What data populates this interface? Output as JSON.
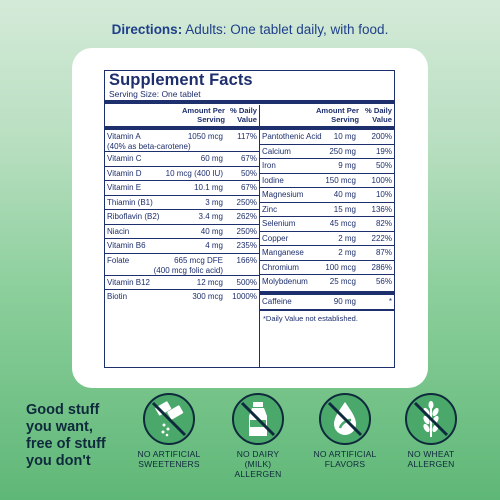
{
  "directions": {
    "label": "Directions:",
    "text": "Adults: One tablet daily, with food."
  },
  "supplement_facts": {
    "title": "Supplement Facts",
    "serving": "Serving Size: One tablet",
    "col_amount": [
      "Amount Per",
      "Serving"
    ],
    "col_dv": [
      "% Daily",
      "Value"
    ],
    "left_rows": [
      {
        "name": "Vitamin A",
        "amount": "1050 mcg",
        "dv": "117%",
        "sub": "(40% as beta-carotene)"
      },
      {
        "name": "Vitamin C",
        "amount": "60 mg",
        "dv": "67%"
      },
      {
        "name": "Vitamin D",
        "amount": "10 mcg (400 IU)",
        "dv": "50%"
      },
      {
        "name": "Vitamin E",
        "amount": "10.1 mg",
        "dv": "67%"
      },
      {
        "name": "Thiamin (B1)",
        "amount": "3 mg",
        "dv": "250%"
      },
      {
        "name": "Riboflavin (B2)",
        "amount": "3.4 mg",
        "dv": "262%"
      },
      {
        "name": "Niacin",
        "amount": "40 mg",
        "dv": "250%"
      },
      {
        "name": "Vitamin B6",
        "amount": "4 mg",
        "dv": "235%"
      },
      {
        "name": "Folate",
        "amount": "665 mcg DFE",
        "dv": "166%",
        "sub2": "(400 mcg folic acid)"
      },
      {
        "name": "Vitamin B12",
        "amount": "12 mcg",
        "dv": "500%"
      },
      {
        "name": "Biotin",
        "amount": "300 mcg",
        "dv": "1000%"
      }
    ],
    "right_rows": [
      {
        "name": "Pantothenic Acid",
        "amount": "10 mg",
        "dv": "200%"
      },
      {
        "name": "Calcium",
        "amount": "250 mg",
        "dv": "19%"
      },
      {
        "name": "Iron",
        "amount": "9 mg",
        "dv": "50%"
      },
      {
        "name": "Iodine",
        "amount": "150 mcg",
        "dv": "100%"
      },
      {
        "name": "Magnesium",
        "amount": "40 mg",
        "dv": "10%"
      },
      {
        "name": "Zinc",
        "amount": "15 mg",
        "dv": "136%"
      },
      {
        "name": "Selenium",
        "amount": "45 mcg",
        "dv": "82%"
      },
      {
        "name": "Copper",
        "amount": "2 mg",
        "dv": "222%"
      },
      {
        "name": "Manganese",
        "amount": "2 mg",
        "dv": "87%"
      },
      {
        "name": "Chromium",
        "amount": "100 mcg",
        "dv": "286%"
      },
      {
        "name": "Molybdenum",
        "amount": "25 mcg",
        "dv": "56%"
      },
      {
        "name": "Caffeine",
        "amount": "90 mg",
        "dv": "*"
      }
    ],
    "footnote": "*Daily Value not established."
  },
  "tagline": [
    "Good stuff",
    "you want,",
    "free of stuff",
    "you don't"
  ],
  "badges": [
    {
      "icon": "sweetener-packet-icon",
      "lines": [
        "NO ARTIFICIAL",
        "SWEETENERS"
      ]
    },
    {
      "icon": "milk-bottle-icon",
      "lines": [
        "NO DAIRY",
        "(MILK)",
        "ALLERGEN"
      ]
    },
    {
      "icon": "droplet-leaf-icon",
      "lines": [
        "NO ARTIFICIAL",
        "FLAVORS"
      ]
    },
    {
      "icon": "wheat-icon",
      "lines": [
        "NO WHEAT",
        "ALLERGEN"
      ]
    }
  ],
  "colors": {
    "navy": "#1e2f6d",
    "badge_fill": "#4aa96a",
    "text_dark": "#0f2a3c"
  }
}
